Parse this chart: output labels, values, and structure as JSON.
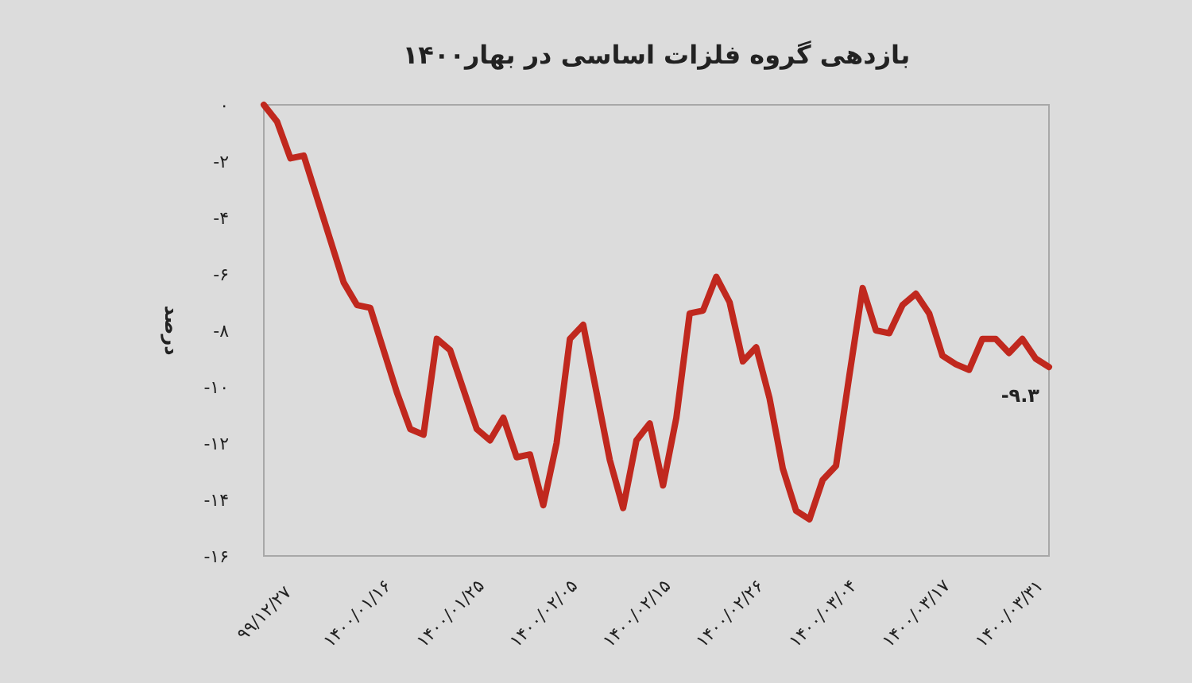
{
  "chart_data": {
    "type": "line",
    "title": "بازدهی گروه فلزات اساسی در بهار۱۴۰۰",
    "ylabel": "درصد",
    "categories": [
      "۹۹/۱۲/۲۷",
      null,
      null,
      null,
      null,
      null,
      null,
      "۱۴۰۰/۰۱/۱۶",
      null,
      null,
      null,
      null,
      null,
      null,
      "۱۴۰۰/۰۱/۲۵",
      null,
      null,
      null,
      null,
      null,
      null,
      "۱۴۰۰/۰۲/۰۵",
      null,
      null,
      null,
      null,
      null,
      null,
      "۱۴۰۰/۰۲/۱۵",
      null,
      null,
      null,
      null,
      null,
      null,
      "۱۴۰۰/۰۲/۲۶",
      null,
      null,
      null,
      null,
      null,
      null,
      "۱۴۰۰/۰۳/۰۴",
      null,
      null,
      null,
      null,
      null,
      null,
      "۱۴۰۰/۰۳/۱۷",
      null,
      null,
      null,
      null,
      null,
      null,
      "۱۴۰۰/۰۳/۳۱",
      null,
      null,
      null
    ],
    "series": [
      {
        "color": "#c0281e",
        "values": [
          0,
          -0.6,
          -1.9,
          -1.8,
          -3.3,
          -4.8,
          -6.3,
          -7.1,
          -7.2,
          -8.7,
          -10.2,
          -11.5,
          -11.7,
          -8.3,
          -8.7,
          -10.1,
          -11.5,
          -11.9,
          -11.1,
          -12.5,
          -12.4,
          -14.2,
          -12.0,
          -8.3,
          -7.8,
          -10.2,
          -12.6,
          -14.3,
          -11.9,
          -11.3,
          -13.5,
          -11.1,
          -7.4,
          -7.3,
          -6.1,
          -7.0,
          -9.1,
          -8.6,
          -10.4,
          -12.9,
          -14.4,
          -14.7,
          -13.3,
          -12.8,
          -9.6,
          -6.5,
          -8.0,
          -8.1,
          -7.1,
          -6.7,
          -7.4,
          -8.9,
          -9.2,
          -9.4,
          -8.3,
          -8.3,
          -8.8,
          -8.3,
          -9.0,
          -9.3
        ]
      }
    ],
    "ylim": [
      -16,
      0
    ],
    "yticks": [
      {
        "value": 0,
        "label": "۰"
      },
      {
        "value": -2,
        "label": "-۲"
      },
      {
        "value": -4,
        "label": "-۴"
      },
      {
        "value": -6,
        "label": "-۶"
      },
      {
        "value": -8,
        "label": "-۸"
      },
      {
        "value": -10,
        "label": "-۱۰"
      },
      {
        "value": -12,
        "label": "-۱۲"
      },
      {
        "value": -14,
        "label": "-۱۴"
      },
      {
        "value": -16,
        "label": "-۱۶"
      }
    ],
    "annotations": [
      "-۹.۳"
    ],
    "grid": false,
    "marker": "none",
    "line_style": "solid"
  }
}
